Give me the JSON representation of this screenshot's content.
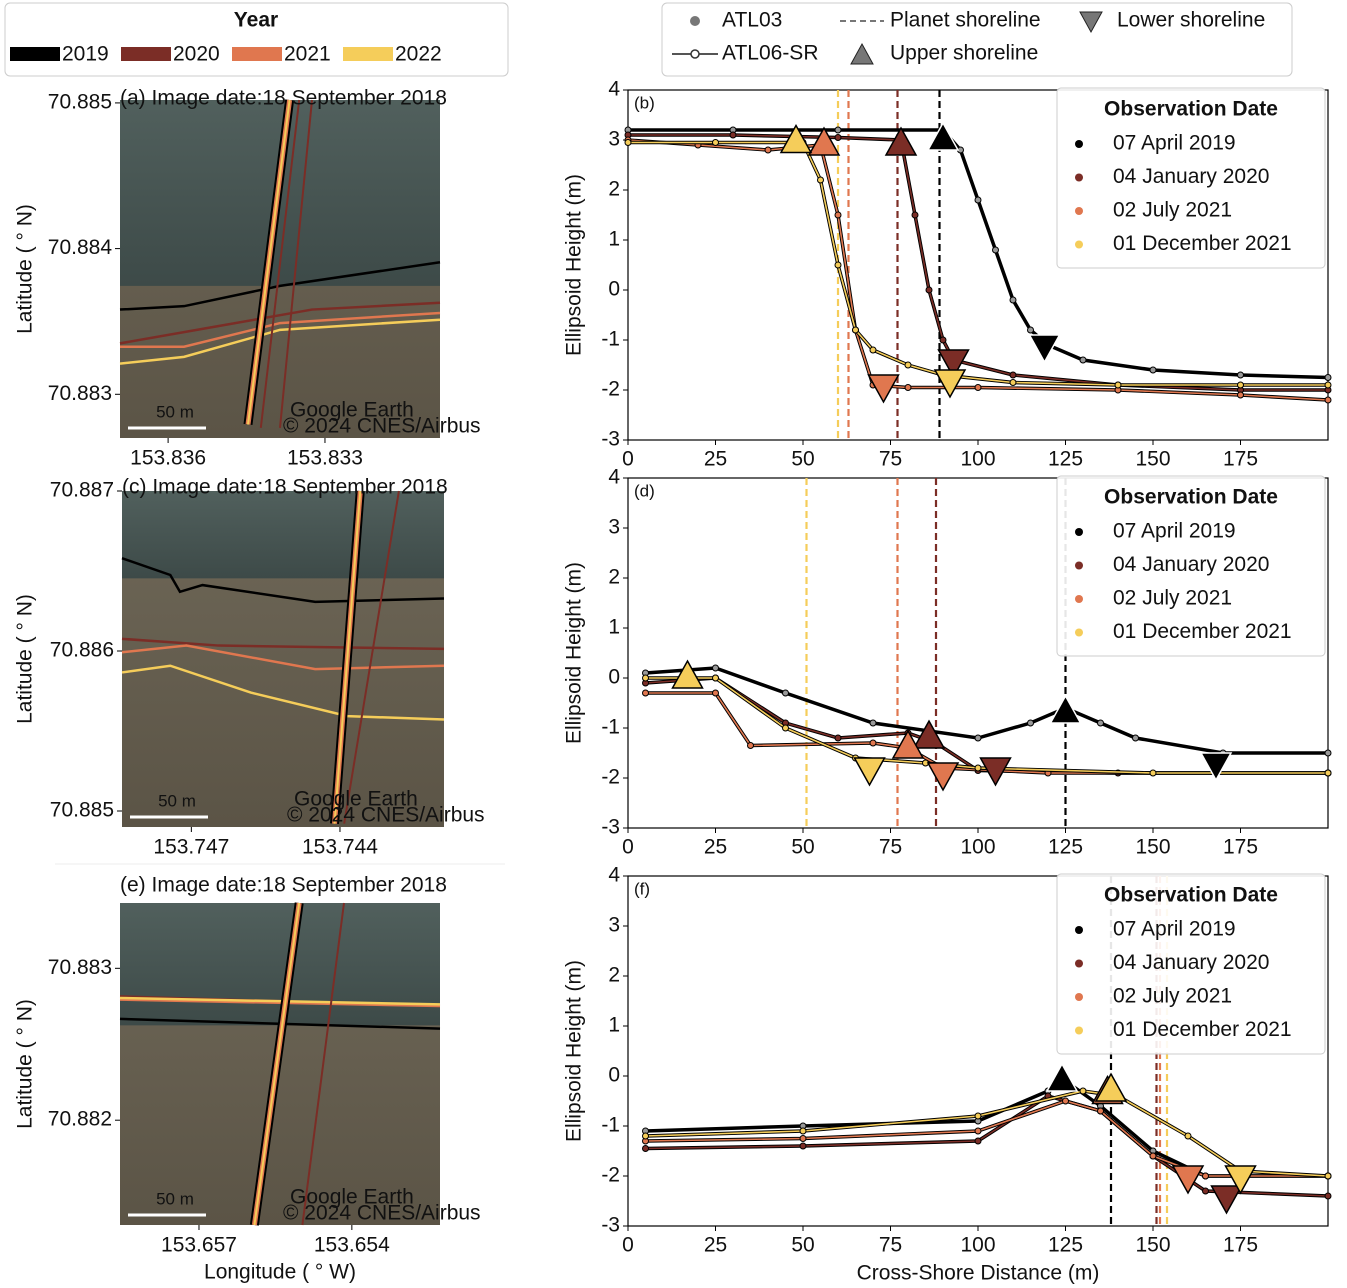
{
  "year_legend": {
    "title": "Year",
    "items": [
      {
        "name": "2019",
        "color": "#000000"
      },
      {
        "name": "2020",
        "color": "#7b2d26"
      },
      {
        "name": "2021",
        "color": "#e0774f"
      },
      {
        "name": "2022",
        "color": "#f5cd5a"
      }
    ]
  },
  "symbol_legend": {
    "items": [
      "ATL03",
      "ATL06-SR",
      "Planet shoreline",
      "Upper shoreline",
      "Lower shoreline"
    ]
  },
  "chart_data": [
    {
      "type": "image",
      "title": "(a) Image date:18 September 2018",
      "ylabel": "Latitude ( ° N)",
      "xlim": [
        153.83692,
        153.8308
      ],
      "ylim": [
        70.8827,
        70.88502
      ],
      "xticks": [
        153.836,
        153.833
      ],
      "yticks": [
        70.885,
        70.884,
        70.883
      ],
      "scale_bar": "50 m",
      "credit": [
        "Google Earth",
        "© 2024 CNES/Airbus"
      ]
    },
    {
      "type": "profile",
      "panel": "(b)",
      "ylabel": "Ellipsoid Height (m)",
      "xlim": [
        0,
        200
      ],
      "ylim": [
        -3,
        4
      ],
      "xticks": [
        0,
        25,
        50,
        75,
        100,
        125,
        150,
        175
      ],
      "yticks": [
        -3,
        -2,
        -1,
        0,
        1,
        2,
        3,
        4
      ],
      "legend_title": "Observation Date",
      "legend": "upper right",
      "series": [
        {
          "name": "07 April 2019",
          "color": "#000000",
          "x": [
            0,
            30,
            60,
            90,
            95,
            100,
            105,
            110,
            115,
            120,
            130,
            150,
            175,
            200
          ],
          "values": [
            3.2,
            3.2,
            3.2,
            3.2,
            2.8,
            1.8,
            0.8,
            -0.2,
            -0.8,
            -1.1,
            -1.4,
            -1.6,
            -1.7,
            -1.75
          ],
          "upper_shoreline": {
            "x": 90,
            "y": 3.0
          },
          "lower_shoreline": {
            "x": 119,
            "y": -1.1
          },
          "planet_shoreline": 89
        },
        {
          "name": "04 January 2020",
          "color": "#7b2d26",
          "x": [
            0,
            30,
            60,
            78,
            82,
            86,
            90,
            93,
            110,
            140,
            175,
            200
          ],
          "values": [
            3.1,
            3.1,
            3.05,
            3.0,
            1.5,
            0.0,
            -1.0,
            -1.4,
            -1.7,
            -1.9,
            -2.0,
            -2.0
          ],
          "upper_shoreline": {
            "x": 78,
            "y": 2.9
          },
          "lower_shoreline": {
            "x": 93,
            "y": -1.4
          },
          "planet_shoreline": 77
        },
        {
          "name": "02 July 2021",
          "color": "#e0774f",
          "x": [
            0,
            20,
            40,
            55,
            60,
            65,
            70,
            80,
            100,
            140,
            175,
            200
          ],
          "values": [
            3.0,
            2.9,
            2.8,
            2.9,
            1.5,
            -0.8,
            -1.9,
            -1.95,
            -1.95,
            -2.0,
            -2.1,
            -2.2
          ],
          "upper_shoreline": {
            "x": 56,
            "y": 2.9
          },
          "lower_shoreline": {
            "x": 73,
            "y": -1.9
          },
          "planet_shoreline": 63
        },
        {
          "name": "01 December 2021",
          "color": "#f5cd5a",
          "x": [
            0,
            25,
            50,
            55,
            60,
            65,
            70,
            80,
            90,
            110,
            140,
            175,
            200
          ],
          "values": [
            2.95,
            2.95,
            2.95,
            2.2,
            0.5,
            -0.8,
            -1.2,
            -1.5,
            -1.7,
            -1.85,
            -1.9,
            -1.9,
            -1.9
          ],
          "upper_shoreline": {
            "x": 48,
            "y": 2.95
          },
          "lower_shoreline": {
            "x": 92,
            "y": -1.8
          },
          "planet_shoreline": 60
        }
      ]
    },
    {
      "type": "image",
      "title": "(c) Image date:18 September 2018",
      "ylabel": "Latitude ( ° N)",
      "xlim": [
        153.7484,
        153.7419
      ],
      "ylim": [
        70.8849,
        70.887
      ],
      "xticks": [
        153.747,
        153.744
      ],
      "yticks": [
        70.887,
        70.886,
        70.885
      ],
      "scale_bar": "50 m",
      "credit": [
        "Google Earth",
        "© 2024 CNES/Airbus"
      ]
    },
    {
      "type": "profile",
      "panel": "(d)",
      "ylabel": "Ellipsoid Height (m)",
      "xlim": [
        0,
        200
      ],
      "ylim": [
        -3,
        4
      ],
      "xticks": [
        0,
        25,
        50,
        75,
        100,
        125,
        150,
        175
      ],
      "yticks": [
        -3,
        -2,
        -1,
        0,
        1,
        2,
        3,
        4
      ],
      "legend_title": "Observation Date",
      "legend": "upper right",
      "series": [
        {
          "name": "07 April 2019",
          "color": "#000000",
          "x": [
            5,
            25,
            45,
            70,
            100,
            115,
            125,
            135,
            145,
            170,
            200
          ],
          "values": [
            0.1,
            0.2,
            -0.3,
            -0.9,
            -1.2,
            -0.9,
            -0.6,
            -0.9,
            -1.2,
            -1.5,
            -1.5
          ],
          "upper_shoreline": {
            "x": 125,
            "y": -0.7
          },
          "lower_shoreline": {
            "x": 168,
            "y": -1.7
          },
          "planet_shoreline": 125
        },
        {
          "name": "04 January 2020",
          "color": "#7b2d26",
          "x": [
            5,
            25,
            45,
            60,
            80,
            88,
            100,
            140,
            200
          ],
          "values": [
            -0.1,
            0.0,
            -0.9,
            -1.2,
            -1.1,
            -1.3,
            -1.85,
            -1.9,
            -1.9
          ],
          "upper_shoreline": {
            "x": 86,
            "y": -1.2
          },
          "lower_shoreline": {
            "x": 105,
            "y": -1.8
          },
          "planet_shoreline": 88
        },
        {
          "name": "02 July 2021",
          "color": "#e0774f",
          "x": [
            5,
            25,
            35,
            70,
            80,
            90,
            120,
            200
          ],
          "values": [
            -0.3,
            -0.3,
            -1.35,
            -1.3,
            -1.4,
            -1.8,
            -1.9,
            -1.9
          ],
          "upper_shoreline": {
            "x": 80,
            "y": -1.4
          },
          "lower_shoreline": {
            "x": 90,
            "y": -1.9
          },
          "planet_shoreline": 77
        },
        {
          "name": "01 December 2021",
          "color": "#f5cd5a",
          "x": [
            5,
            25,
            45,
            65,
            85,
            100,
            150,
            200
          ],
          "values": [
            0.0,
            0.0,
            -1.0,
            -1.6,
            -1.7,
            -1.8,
            -1.9,
            -1.9
          ],
          "upper_shoreline": {
            "x": 17,
            "y": 0.0
          },
          "lower_shoreline": {
            "x": 69,
            "y": -1.8
          },
          "planet_shoreline": 51
        }
      ]
    },
    {
      "type": "image",
      "title": "(e) Image date:18 September 2018",
      "ylabel": "Latitude ( ° N)",
      "xlabel": "Longitude ( ° W)",
      "xlim": [
        153.65855,
        153.65227
      ],
      "ylim": [
        70.88131,
        70.88343
      ],
      "xticks": [
        153.657,
        153.654
      ],
      "yticks": [
        70.883,
        70.882
      ],
      "scale_bar": "50 m",
      "credit": [
        "Google Earth",
        "© 2024 CNES/Airbus"
      ]
    },
    {
      "type": "profile",
      "panel": "(f)",
      "ylabel": "Ellipsoid Height (m)",
      "xlabel": "Cross-Shore Distance (m)",
      "xlim": [
        0,
        200
      ],
      "ylim": [
        -3,
        4
      ],
      "xticks": [
        0,
        25,
        50,
        75,
        100,
        125,
        150,
        175
      ],
      "yticks": [
        -3,
        -2,
        -1,
        0,
        1,
        2,
        3,
        4
      ],
      "legend_title": "Observation Date",
      "legend": "upper right",
      "series": [
        {
          "name": "07 April 2019",
          "color": "#000000",
          "x": [
            5,
            50,
            100,
            120,
            125,
            135,
            150,
            165,
            200
          ],
          "values": [
            -1.1,
            -1.0,
            -0.9,
            -0.3,
            -0.1,
            -0.6,
            -1.5,
            -2.0,
            -2.0
          ],
          "upper_shoreline": {
            "x": 124,
            "y": -0.1
          },
          "planet_shoreline": 138
        },
        {
          "name": "04 January 2020",
          "color": "#7b2d26",
          "x": [
            5,
            50,
            100,
            120,
            135,
            150,
            165,
            200
          ],
          "values": [
            -1.45,
            -1.4,
            -1.3,
            -0.4,
            -0.7,
            -1.6,
            -2.3,
            -2.4
          ],
          "lower_shoreline": {
            "x": 171,
            "y": -2.4
          },
          "planet_shoreline": 151
        },
        {
          "name": "02 July 2021",
          "color": "#e0774f",
          "x": [
            5,
            50,
            100,
            125,
            135,
            150,
            165,
            200
          ],
          "values": [
            -1.3,
            -1.25,
            -1.1,
            -0.5,
            -0.7,
            -1.6,
            -2.0,
            -2.0
          ],
          "upper_shoreline": {
            "x": 137,
            "y": -0.35
          },
          "lower_shoreline": {
            "x": 160,
            "y": -2.0
          },
          "planet_shoreline": 152
        },
        {
          "name": "01 December 2021",
          "color": "#f5cd5a",
          "x": [
            5,
            50,
            100,
            130,
            140,
            160,
            175,
            200
          ],
          "values": [
            -1.2,
            -1.1,
            -0.8,
            -0.3,
            -0.4,
            -1.2,
            -1.9,
            -2.0
          ],
          "upper_shoreline": {
            "x": 138,
            "y": -0.3
          },
          "lower_shoreline": {
            "x": 175,
            "y": -2.0
          },
          "planet_shoreline": 154
        }
      ]
    }
  ]
}
